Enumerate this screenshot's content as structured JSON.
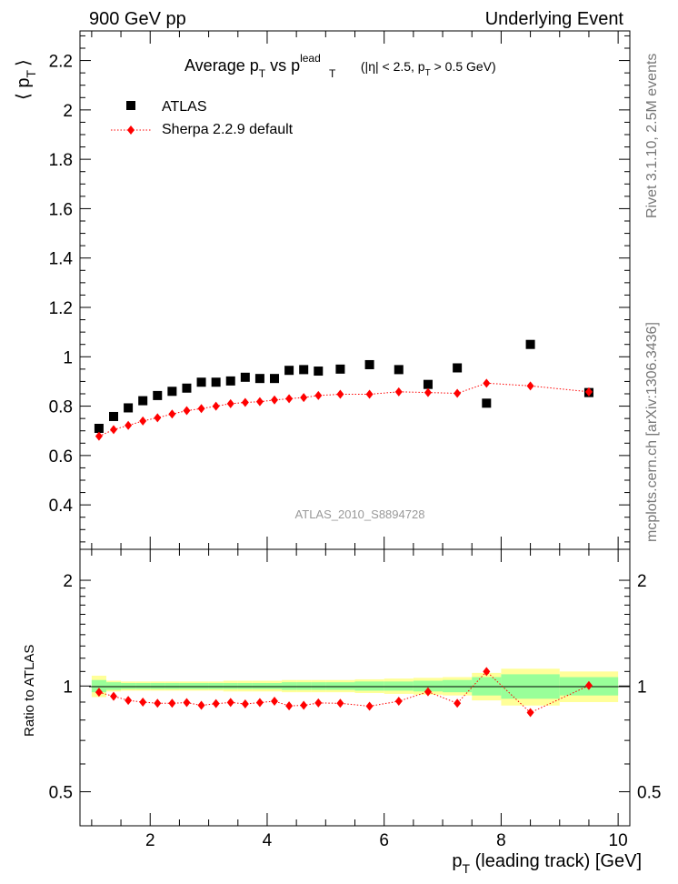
{
  "header": {
    "left": "900 GeV pp",
    "right": "Underlying Event"
  },
  "side_labels": {
    "rivet": "Rivet 3.1.10,  2.5M events",
    "mcplots": "mcplots.cern.ch [arXiv:1306.3436]"
  },
  "chart_data": [
    {
      "panel": "main",
      "type": "scatter",
      "title": "Average p_T vs p_T^lead (|η| < 2.5, p_T > 0.5 GeV)",
      "title_parts": {
        "a": "Average p",
        "a_sub": "T",
        "b": " vs p",
        "b_sup": "lead",
        "b_sub": "T",
        "c": " (|η| < 2.5, p",
        "c_sub": "T",
        "d": " > 0.5 GeV)"
      },
      "ylabel": "⟨ p_T ⟩",
      "ylabel_parts": {
        "open": "⟨ p",
        "sub": "T",
        "close": "⟩"
      },
      "watermark": "ATLAS_2010_S8894728",
      "xlim": [
        0.8,
        10.2
      ],
      "ylim": [
        0.22,
        2.32
      ],
      "yticks": [
        0.4,
        0.6,
        0.8,
        1.0,
        1.2,
        1.4,
        1.6,
        1.8,
        2.0,
        2.2
      ],
      "ytick_labels": [
        "0.4",
        "0.6",
        "0.8",
        "1",
        "1.2",
        "1.4",
        "1.6",
        "1.8",
        "2",
        "2.2"
      ],
      "legend": {
        "position": "top-left",
        "entries": [
          "ATLAS",
          "Sherpa 2.2.9 default"
        ]
      },
      "series": [
        {
          "name": "ATLAS",
          "marker": "square",
          "color": "#000000",
          "x": [
            1.125,
            1.375,
            1.625,
            1.875,
            2.125,
            2.375,
            2.625,
            2.875,
            3.125,
            3.375,
            3.625,
            3.875,
            4.125,
            4.375,
            4.625,
            4.875,
            5.25,
            5.75,
            6.25,
            6.75,
            7.25,
            7.75,
            8.5,
            9.5
          ],
          "y": [
            0.71,
            0.758,
            0.793,
            0.822,
            0.843,
            0.86,
            0.873,
            0.897,
            0.897,
            0.902,
            0.917,
            0.912,
            0.912,
            0.945,
            0.948,
            0.942,
            0.95,
            0.968,
            0.948,
            0.888,
            0.955,
            0.812,
            1.05,
            0.855
          ]
        },
        {
          "name": "Sherpa 2.2.9 default",
          "marker": "diamond",
          "color": "#ff0000",
          "x": [
            1.125,
            1.375,
            1.625,
            1.875,
            2.125,
            2.375,
            2.625,
            2.875,
            3.125,
            3.375,
            3.625,
            3.875,
            4.125,
            4.375,
            4.625,
            4.875,
            5.25,
            5.75,
            6.25,
            6.75,
            7.25,
            7.75,
            8.5,
            9.5
          ],
          "y": [
            0.678,
            0.705,
            0.722,
            0.74,
            0.753,
            0.768,
            0.782,
            0.79,
            0.8,
            0.81,
            0.815,
            0.818,
            0.825,
            0.83,
            0.835,
            0.843,
            0.848,
            0.848,
            0.858,
            0.855,
            0.852,
            0.893,
            0.882,
            0.858
          ]
        }
      ]
    },
    {
      "panel": "ratio",
      "type": "line",
      "ylabel": "Ratio to ATLAS",
      "xlabel": "p_T (leading track) [GeV]",
      "xlabel_parts": {
        "a": "p",
        "sub": "T",
        "b": " (leading track) [GeV]"
      },
      "xlim": [
        0.8,
        10.2
      ],
      "xticks": [
        2,
        4,
        6,
        8,
        10
      ],
      "xtick_labels": [
        "2",
        "4",
        "6",
        "8",
        "10"
      ],
      "ylim": [
        0.4,
        2.45
      ],
      "yscale": "log",
      "yticks": [
        0.5,
        1,
        2
      ],
      "ytick_labels": [
        "0.5",
        "1",
        "2"
      ],
      "bands": {
        "x_edges": [
          1.0,
          1.25,
          1.5,
          1.75,
          2.0,
          2.25,
          2.5,
          2.75,
          3.0,
          3.25,
          3.5,
          3.75,
          4.0,
          4.25,
          4.5,
          4.75,
          5.0,
          5.5,
          6.0,
          6.5,
          7.0,
          7.5,
          8.0,
          9.0,
          10.0
        ],
        "inner_half": [
          0.04,
          0.025,
          0.02,
          0.02,
          0.02,
          0.02,
          0.02,
          0.02,
          0.02,
          0.02,
          0.02,
          0.02,
          0.02,
          0.025,
          0.025,
          0.025,
          0.025,
          0.03,
          0.03,
          0.035,
          0.04,
          0.06,
          0.08,
          0.06,
          0.06
        ],
        "outer_half": [
          0.07,
          0.035,
          0.03,
          0.03,
          0.03,
          0.03,
          0.03,
          0.03,
          0.03,
          0.035,
          0.035,
          0.035,
          0.035,
          0.04,
          0.04,
          0.04,
          0.04,
          0.045,
          0.05,
          0.055,
          0.06,
          0.09,
          0.12,
          0.1,
          0.1
        ],
        "inner_color": "#99ff99",
        "outer_color": "#ffff99"
      },
      "series": [
        {
          "name": "Sherpa 2.2.9 default",
          "marker": "diamond",
          "color": "#ff0000",
          "x": [
            1.125,
            1.375,
            1.625,
            1.875,
            2.125,
            2.375,
            2.625,
            2.875,
            3.125,
            3.375,
            3.625,
            3.875,
            4.125,
            4.375,
            4.625,
            4.875,
            5.25,
            5.75,
            6.25,
            6.75,
            7.25,
            7.75,
            8.5,
            9.5
          ],
          "y": [
            0.96,
            0.935,
            0.91,
            0.9,
            0.893,
            0.893,
            0.897,
            0.881,
            0.891,
            0.898,
            0.889,
            0.897,
            0.905,
            0.878,
            0.881,
            0.895,
            0.893,
            0.876,
            0.905,
            0.963,
            0.893,
            1.1,
            0.84,
            1.003
          ]
        }
      ]
    }
  ]
}
